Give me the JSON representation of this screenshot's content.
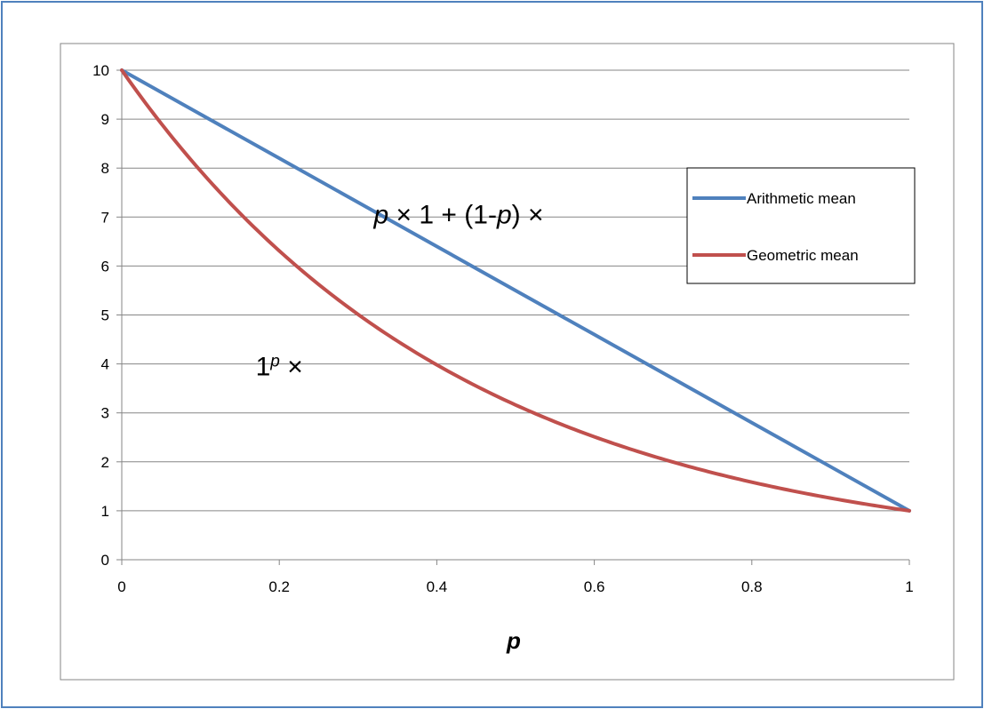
{
  "chart_data": {
    "type": "line",
    "title": "",
    "xlabel": "p",
    "ylabel": "",
    "xlim": [
      0,
      1
    ],
    "ylim": [
      0,
      10
    ],
    "x_ticks": [
      "0",
      "0.2",
      "0.4",
      "0.6",
      "0.8",
      "1"
    ],
    "y_ticks": [
      "0",
      "1",
      "2",
      "3",
      "4",
      "5",
      "6",
      "7",
      "8",
      "9",
      "10"
    ],
    "grid": "horizontal",
    "legend_position": "right",
    "series": [
      {
        "name": "Arithmetic mean",
        "color": "#4f81bd",
        "x": [
          0,
          0.1,
          0.2,
          0.3,
          0.4,
          0.5,
          0.6,
          0.7,
          0.8,
          0.9,
          1
        ],
        "values": [
          10,
          9.1,
          8.2,
          7.3,
          6.4,
          5.5,
          4.6,
          3.7,
          2.8,
          1.9,
          1
        ]
      },
      {
        "name": "Geometric mean",
        "color": "#c0504d",
        "x": [
          0,
          0.1,
          0.2,
          0.3,
          0.4,
          0.5,
          0.6,
          0.7,
          0.8,
          0.9,
          1
        ],
        "values": [
          10,
          7.94,
          6.31,
          5.01,
          3.98,
          3.16,
          2.51,
          2.0,
          1.58,
          1.26,
          1
        ]
      }
    ],
    "annotations": [
      {
        "parts": [
          {
            "t": "p",
            "i": true
          },
          {
            "t": " × 1 + (1-",
            "i": false
          },
          {
            "t": "p",
            "i": true
          },
          {
            "t": ") ×",
            "i": false
          }
        ],
        "x": 0.32,
        "y": 7.05
      },
      {
        "parts": [
          {
            "t": "1",
            "i": false
          },
          {
            "t": "p",
            "i": true,
            "sup": true
          },
          {
            "t": " ×",
            "i": false
          }
        ],
        "x": 0.17,
        "y": 3.95
      }
    ]
  },
  "colors": {
    "outer_border": "#4f81bd",
    "plot_border": "#868686",
    "gridline": "#868686",
    "axis": "#868686"
  }
}
